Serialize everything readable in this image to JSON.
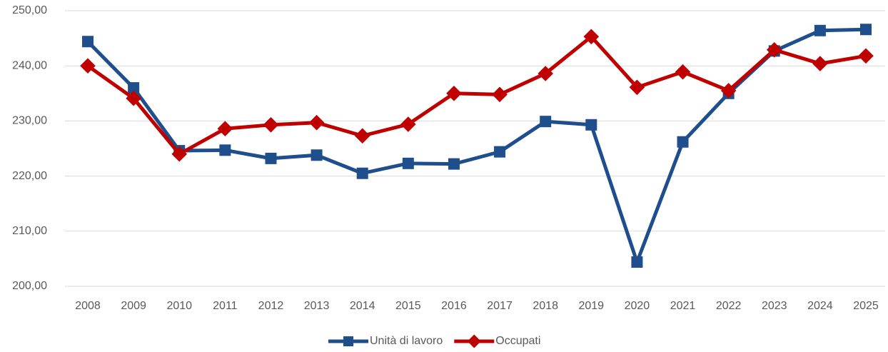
{
  "chart_data": {
    "type": "line",
    "categories": [
      "2008",
      "2009",
      "2010",
      "2011",
      "2012",
      "2013",
      "2014",
      "2015",
      "2016",
      "2017",
      "2018",
      "2019",
      "2020",
      "2021",
      "2022",
      "2023",
      "2024",
      "2025"
    ],
    "series": [
      {
        "name": "Unità di lavoro",
        "color": "#1f4e8c",
        "marker": "square",
        "values": [
          244.4,
          236.0,
          224.6,
          224.7,
          223.2,
          223.8,
          220.5,
          222.3,
          222.2,
          224.4,
          229.9,
          229.3,
          204.4,
          226.2,
          235.0,
          242.7,
          246.4,
          246.6
        ]
      },
      {
        "name": "Occupati",
        "color": "#c00000",
        "marker": "diamond",
        "values": [
          240.0,
          234.1,
          224.0,
          228.6,
          229.3,
          229.7,
          227.3,
          229.4,
          235.0,
          234.8,
          238.6,
          245.3,
          236.1,
          238.9,
          235.5,
          242.9,
          240.4,
          241.8
        ]
      }
    ],
    "ylim": [
      200,
      250
    ],
    "yticks": [
      {
        "value": 200,
        "label": "200,00"
      },
      {
        "value": 210,
        "label": "210,00"
      },
      {
        "value": 220,
        "label": "220,00"
      },
      {
        "value": 230,
        "label": "230,00"
      },
      {
        "value": 240,
        "label": "240,00"
      },
      {
        "value": 250,
        "label": "250,00"
      }
    ],
    "grid": true,
    "legend": "bottom"
  }
}
